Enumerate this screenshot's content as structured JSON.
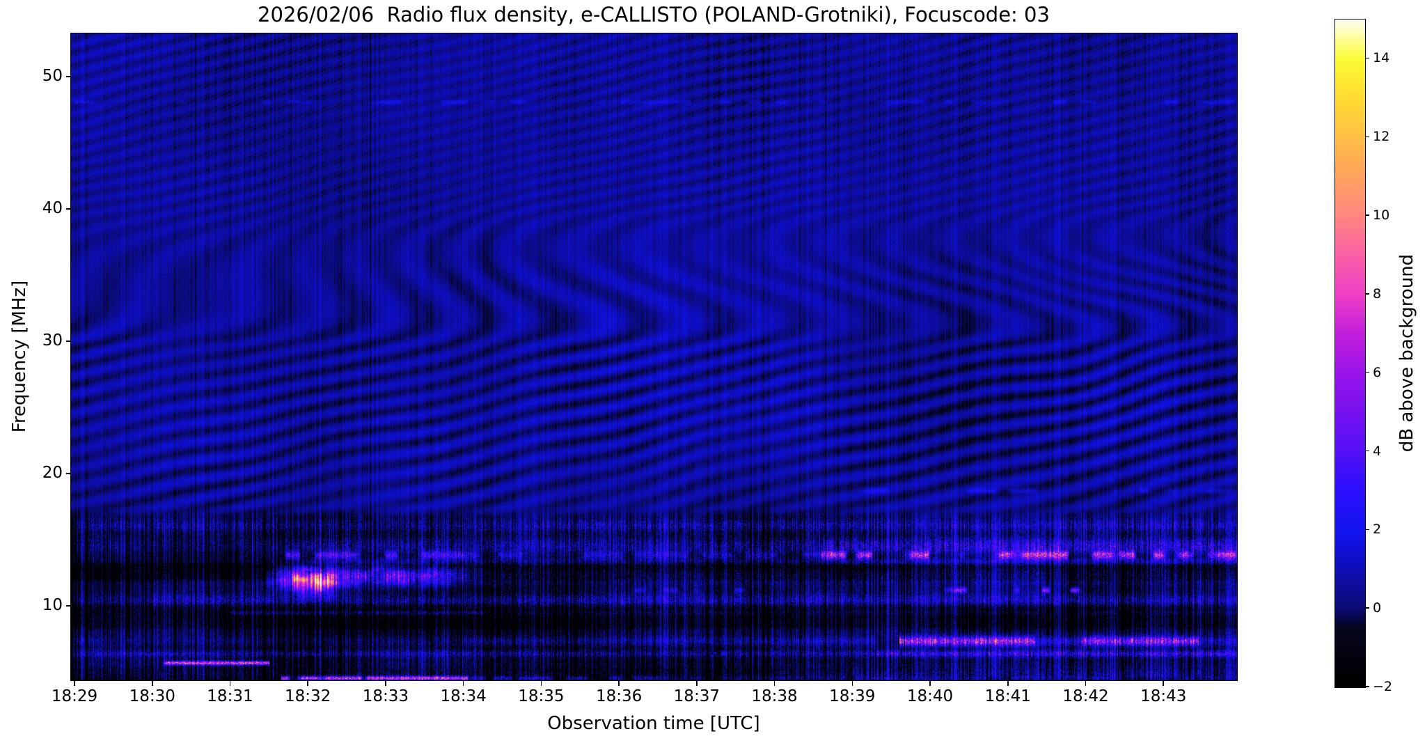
{
  "figure": {
    "title": "2026/02/06  Radio flux density, e-CALLISTO (POLAND-Grotniki), Focuscode: 03",
    "background_color": "#ffffff",
    "text_color": "#000000"
  },
  "chart_data": {
    "type": "heatmap",
    "subtype": "radio-spectrogram",
    "title": "2026/02/06  Radio flux density, e-CALLISTO (POLAND-Grotniki), Focuscode: 03",
    "xlabel": "Observation time [UTC]",
    "ylabel": "Frequency [MHz]",
    "colorbar_label": "dB above background",
    "x_tick_labels": [
      "18:29",
      "18:30",
      "18:31",
      "18:32",
      "18:33",
      "18:34",
      "18:35",
      "18:36",
      "18:37",
      "18:38",
      "18:39",
      "18:40",
      "18:41",
      "18:42",
      "18:43"
    ],
    "x_span_minutes": 15.0,
    "y_tick_values": [
      50,
      40,
      30,
      20,
      10
    ],
    "y_range_mhz": [
      4.4,
      53.3
    ],
    "colorbar_ticks": [
      -2,
      0,
      2,
      4,
      6,
      8,
      10,
      12,
      14
    ],
    "colorbar_tick_labels": [
      "−2",
      "0",
      "2",
      "4",
      "6",
      "8",
      "10",
      "12",
      "14"
    ],
    "colorbar_range": [
      -2,
      15
    ],
    "grid": false,
    "colormap_stops": [
      [
        0.0,
        "#000000"
      ],
      [
        0.09,
        "#05051e"
      ],
      [
        0.118,
        "#0b0b74"
      ],
      [
        0.2,
        "#0f0fd0"
      ],
      [
        0.235,
        "#1414f2"
      ],
      [
        0.3,
        "#2e0efe"
      ],
      [
        0.353,
        "#5410f6"
      ],
      [
        0.47,
        "#9913e9"
      ],
      [
        0.53,
        "#c21edb"
      ],
      [
        0.588,
        "#ee3fc6"
      ],
      [
        0.65,
        "#fa62a2"
      ],
      [
        0.706,
        "#ff8680"
      ],
      [
        0.765,
        "#ffa25e"
      ],
      [
        0.824,
        "#ffbf45"
      ],
      [
        0.88,
        "#ffdb32"
      ],
      [
        0.94,
        "#fbfb33"
      ],
      [
        1.0,
        "#fffff6"
      ]
    ],
    "background_texture": {
      "base_db_upper": 0.52,
      "base_db_lower": -0.55,
      "fringe_amp_peak": 0.48,
      "fringe_center_mhz": 25,
      "noisy_region_below_mhz": 16.9
    },
    "dark_zones": [
      {
        "f0": 11.95,
        "f1": 13.25,
        "db": -1.0
      },
      {
        "f0": 8.3,
        "f1": 10.2,
        "db": -0.85
      },
      {
        "f0": 3.8,
        "f1": 5.35,
        "db": -0.7
      }
    ],
    "bands": [
      {
        "name": "48mhz-speckle-line",
        "f_center": 48.1,
        "f_halfwidth": 0.15,
        "style": "dash",
        "duty": 0.5,
        "segments": [
          [
            0,
            15,
            1.3
          ]
        ]
      },
      {
        "name": "18.7mhz-dotted-line",
        "f_center": 18.7,
        "f_halfwidth": 0.18,
        "style": "dash",
        "duty": 0.4,
        "segments": [
          [
            9.5,
            15,
            1.6
          ]
        ]
      },
      {
        "name": "16mhz-speckle-band",
        "f_center": 16.1,
        "f_halfwidth": 0.45,
        "style": "speckle",
        "duty": 1,
        "segments": [
          [
            0,
            6,
            1.6
          ],
          [
            6,
            15,
            2.2
          ]
        ]
      },
      {
        "name": "14.5mhz-violet-band",
        "f_center": 14.55,
        "f_halfwidth": 0.6,
        "style": "speckle",
        "duty": 1,
        "segments": [
          [
            0,
            3,
            1.0
          ],
          [
            3,
            9.6,
            2.0
          ],
          [
            9.6,
            15,
            3.4
          ]
        ]
      },
      {
        "name": "13.9mhz-magenta-line",
        "f_center": 13.85,
        "f_halfwidth": 0.3,
        "style": "dash",
        "duty": 0.55,
        "segments": [
          [
            2.6,
            5,
            4.5
          ],
          [
            5,
            9.6,
            2.4
          ],
          [
            9.6,
            15,
            7.6
          ]
        ]
      },
      {
        "name": "13.3mhz-blue-line",
        "f_center": 13.35,
        "f_halfwidth": 0.25,
        "style": "solid",
        "duty": 1,
        "segments": [
          [
            3,
            9.6,
            1.2
          ],
          [
            9.6,
            15,
            2.2
          ]
        ]
      },
      {
        "name": "12.3mhz-activity",
        "f_center": 12.3,
        "f_halfwidth": 0.6,
        "style": "speckle",
        "duty": 1,
        "segments": [
          [
            2.6,
            5,
            3.2
          ],
          [
            5,
            15,
            1.2
          ]
        ]
      },
      {
        "name": "11.2mhz-magenta-dots",
        "f_center": 11.2,
        "f_halfwidth": 0.2,
        "style": "dash",
        "duty": 0.35,
        "segments": [
          [
            6.5,
            9.7,
            2.2
          ],
          [
            9.7,
            15,
            6.4
          ]
        ]
      },
      {
        "name": "10.4mhz-blue-band",
        "f_center": 10.4,
        "f_halfwidth": 0.45,
        "style": "speckle",
        "duty": 1,
        "segments": [
          [
            0,
            1,
            0.9
          ],
          [
            1,
            15,
            2.1
          ]
        ]
      },
      {
        "name": "9.5mhz-faint-line",
        "f_center": 9.5,
        "f_halfwidth": 0.15,
        "style": "solid",
        "duty": 1,
        "segments": [
          [
            2,
            5.3,
            2.2
          ],
          [
            5.3,
            15,
            0.8
          ]
        ]
      },
      {
        "name": "7.3mhz-bright-band",
        "f_center": 7.35,
        "f_halfwidth": 0.35,
        "style": "solid",
        "duty": 1,
        "segments": [
          [
            0,
            5,
            0.9
          ],
          [
            5,
            10.3,
            1.9
          ],
          [
            10.6,
            12.35,
            8.6
          ],
          [
            12.35,
            12.95,
            3.0
          ],
          [
            12.95,
            14.45,
            8.0
          ],
          [
            14.45,
            15,
            2.6
          ]
        ]
      },
      {
        "name": "6.4mhz-speckle-line",
        "f_center": 6.4,
        "f_halfwidth": 0.25,
        "style": "speckle",
        "duty": 1,
        "segments": [
          [
            0,
            10.3,
            2.0
          ],
          [
            10.3,
            15,
            3.8
          ]
        ]
      },
      {
        "name": "5.7mhz-pink-line",
        "f_center": 5.7,
        "f_halfwidth": 0.14,
        "style": "dash",
        "duty": 0.75,
        "segments": [
          [
            1.05,
            2.5,
            9.6
          ]
        ]
      },
      {
        "name": "4.5mhz-orange-line",
        "f_center": 4.55,
        "f_halfwidth": 0.15,
        "style": "dash",
        "duty": 0.7,
        "segments": [
          [
            2.65,
            5.05,
            9.8
          ],
          [
            5.05,
            7.5,
            3.0
          ],
          [
            7.5,
            15,
            1.3
          ]
        ]
      },
      {
        "name": "bottom-speckle-band",
        "f_center": 4.9,
        "f_halfwidth": 0.5,
        "style": "speckle",
        "duty": 1,
        "segments": [
          [
            0,
            10,
            0.9
          ],
          [
            10,
            15,
            1.8
          ]
        ]
      }
    ],
    "bursts": [
      {
        "name": "bright-burst-1832",
        "t_center": 3.05,
        "t_halfwidth": 0.38,
        "f_center": 11.9,
        "f_halfwidth": 0.85,
        "db": 13.0
      },
      {
        "name": "post-burst-violet",
        "t_center": 4.2,
        "t_halfwidth": 0.8,
        "f_center": 12.3,
        "f_halfwidth": 0.8,
        "db": 4.5
      }
    ]
  }
}
